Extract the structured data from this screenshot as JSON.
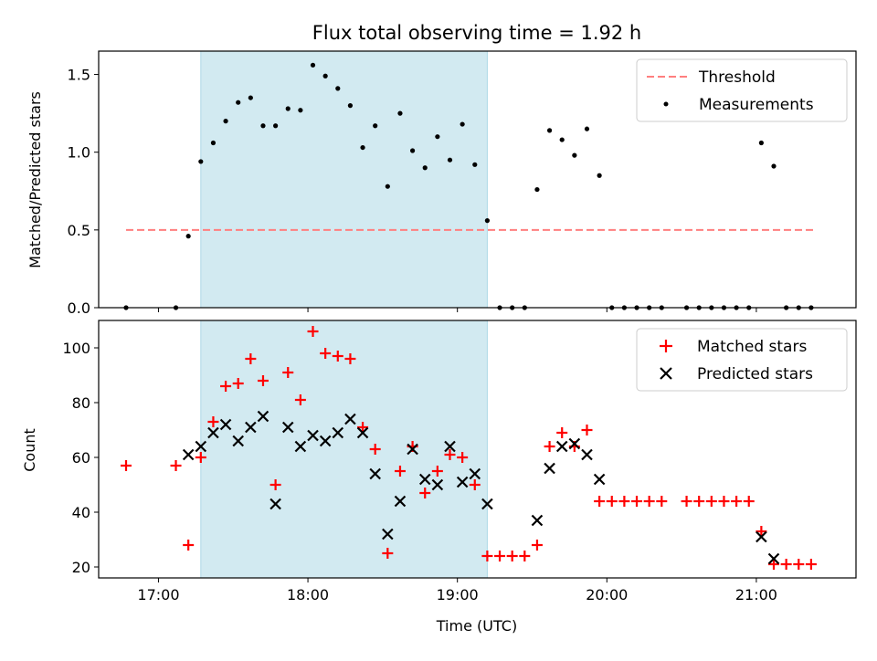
{
  "title": "Flux total observing time = 1.92 h",
  "colors": {
    "threshold": "#ff7f7f",
    "measurement": "#000000",
    "matched": "#ff0000",
    "predicted": "#000000",
    "span": "#add8e6"
  },
  "chart_data": [
    {
      "type": "scatter",
      "ylabel": "Matched/Predicted stars",
      "xlim": [
        "16:36",
        "21:40"
      ],
      "ylim": [
        0,
        1.65
      ],
      "y_ticks": [
        "0.0",
        "0.5",
        "1.0",
        "1.5"
      ],
      "legend_position": "top-right",
      "shaded_span": [
        "17:17",
        "19:12"
      ],
      "threshold": {
        "name": "Threshold",
        "y": 0.5,
        "x": [
          "16:47",
          "21:23"
        ]
      },
      "measurements": {
        "name": "Measurements",
        "x": [
          "16:47",
          "17:07",
          "17:12",
          "17:17",
          "17:22",
          "17:27",
          "17:32",
          "17:37",
          "17:42",
          "17:47",
          "17:52",
          "17:57",
          "18:02",
          "18:07",
          "18:12",
          "18:17",
          "18:22",
          "18:27",
          "18:32",
          "18:37",
          "18:42",
          "18:47",
          "18:52",
          "18:57",
          "19:02",
          "19:07",
          "19:12",
          "19:17",
          "19:22",
          "19:27",
          "19:32",
          "19:37",
          "19:42",
          "19:47",
          "19:52",
          "19:57",
          "20:02",
          "20:07",
          "20:12",
          "20:17",
          "20:22",
          "20:32",
          "20:37",
          "20:42",
          "20:47",
          "20:52",
          "20:57",
          "21:02",
          "21:07",
          "21:12",
          "21:17",
          "21:22"
        ],
        "y": [
          0,
          0,
          0.46,
          0.94,
          1.06,
          1.2,
          1.32,
          1.35,
          1.17,
          1.17,
          1.28,
          1.27,
          1.56,
          1.49,
          1.41,
          1.3,
          1.03,
          1.17,
          0.78,
          1.25,
          1.01,
          0.9,
          1.1,
          0.95,
          1.18,
          0.92,
          0.56,
          0,
          0,
          0,
          0.76,
          1.14,
          1.08,
          0.98,
          1.15,
          0.85,
          0,
          0,
          0,
          0,
          0,
          0,
          0,
          0,
          0,
          0,
          0,
          1.06,
          0.91,
          0,
          0,
          0
        ]
      }
    },
    {
      "type": "scatter",
      "xlabel": "Time (UTC)",
      "ylabel": "Count",
      "xlim": [
        "16:36",
        "21:40"
      ],
      "ylim": [
        16,
        110
      ],
      "y_ticks": [
        "20",
        "40",
        "60",
        "80",
        "100"
      ],
      "x_ticks": [
        "17:00",
        "18:00",
        "19:00",
        "20:00",
        "21:00"
      ],
      "legend_position": "top-right",
      "shaded_span": [
        "17:17",
        "19:12"
      ],
      "series": [
        {
          "name": "Matched stars",
          "marker": "plus",
          "x": [
            "16:47",
            "17:07",
            "17:12",
            "17:17",
            "17:22",
            "17:27",
            "17:32",
            "17:37",
            "17:42",
            "17:47",
            "17:52",
            "17:57",
            "18:02",
            "18:07",
            "18:12",
            "18:17",
            "18:22",
            "18:27",
            "18:32",
            "18:37",
            "18:42",
            "18:47",
            "18:52",
            "18:57",
            "19:02",
            "19:07",
            "19:12",
            "19:17",
            "19:22",
            "19:27",
            "19:32",
            "19:37",
            "19:42",
            "19:47",
            "19:52",
            "19:57",
            "20:02",
            "20:07",
            "20:12",
            "20:17",
            "20:22",
            "20:32",
            "20:37",
            "20:42",
            "20:47",
            "20:52",
            "20:57",
            "21:02",
            "21:07",
            "21:12",
            "21:17",
            "21:22"
          ],
          "y": [
            57,
            57,
            28,
            60,
            73,
            86,
            87,
            96,
            88,
            50,
            91,
            81,
            106,
            98,
            97,
            96,
            71,
            63,
            25,
            55,
            64,
            47,
            55,
            61,
            60,
            50,
            24,
            24,
            24,
            24,
            28,
            64,
            69,
            64,
            70,
            44,
            44,
            44,
            44,
            44,
            44,
            44,
            44,
            44,
            44,
            44,
            44,
            33,
            21,
            21,
            21,
            21
          ]
        },
        {
          "name": "Predicted stars",
          "marker": "x",
          "x": [
            "17:12",
            "17:17",
            "17:22",
            "17:27",
            "17:32",
            "17:37",
            "17:42",
            "17:47",
            "17:52",
            "17:57",
            "18:02",
            "18:07",
            "18:12",
            "18:17",
            "18:22",
            "18:27",
            "18:32",
            "18:37",
            "18:42",
            "18:47",
            "18:52",
            "18:57",
            "19:02",
            "19:07",
            "19:12",
            "19:32",
            "19:37",
            "19:42",
            "19:47",
            "19:52",
            "19:57",
            "21:02",
            "21:07"
          ],
          "y": [
            61,
            64,
            69,
            72,
            66,
            71,
            75,
            43,
            71,
            64,
            68,
            66,
            69,
            74,
            69,
            54,
            32,
            44,
            63,
            52,
            50,
            64,
            51,
            54,
            43,
            37,
            56,
            64,
            65,
            61,
            52,
            31,
            23
          ]
        }
      ]
    }
  ]
}
